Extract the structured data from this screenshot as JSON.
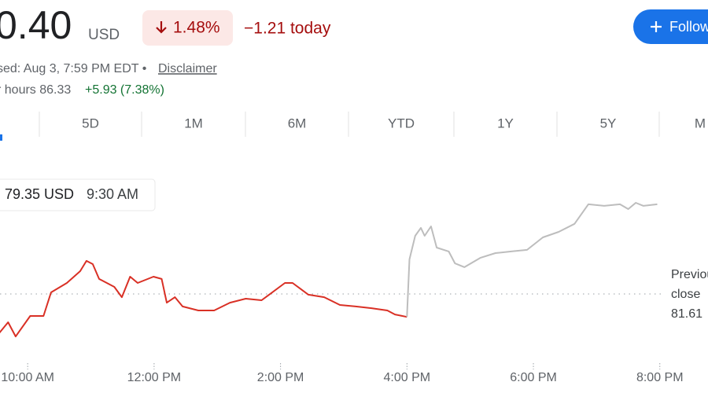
{
  "header": {
    "price": "0.40",
    "currency": "USD",
    "change_percent": "1.48%",
    "change_today": "−1.21 today",
    "follow": "Follow",
    "status": "sed: Aug 3, 7:59 PM EDT •",
    "disclaimer": "Disclaimer",
    "after_hours": "r hours 86.33",
    "after_hours_change": "+5.93 (7.38%)"
  },
  "tabs": [
    "5D",
    "1M",
    "6M",
    "YTD",
    "1Y",
    "5Y",
    "M"
  ],
  "chart_data": {
    "type": "line",
    "xlim": [
      9.5,
      20.7
    ],
    "xticks": [
      {
        "value": 10,
        "label": "10:00 AM"
      },
      {
        "value": 12,
        "label": "12:00 PM"
      },
      {
        "value": 14,
        "label": "2:00 PM"
      },
      {
        "value": 16,
        "label": "4:00 PM"
      },
      {
        "value": 18,
        "label": "6:00 PM"
      },
      {
        "value": 20,
        "label": "8:00 PM"
      }
    ],
    "ylim": [
      78.05,
      88.81
    ],
    "series": [
      {
        "color": "#d93025",
        "x": [
          9.5,
          9.69,
          9.81,
          10.04,
          10.25,
          10.37,
          10.62,
          10.83,
          10.93,
          11.03,
          11.13,
          11.37,
          11.49,
          11.62,
          11.74,
          11.99,
          12.12,
          12.2,
          12.33,
          12.45,
          12.7,
          12.95,
          13.2,
          13.45,
          13.7,
          13.82,
          14.07,
          14.19,
          14.44,
          14.69,
          14.94,
          15.19,
          15.44,
          15.69,
          15.81,
          16.0
        ],
        "values": [
          79.35,
          80.12,
          79.37,
          80.45,
          80.45,
          81.69,
          82.19,
          82.81,
          83.35,
          83.18,
          82.4,
          81.98,
          81.44,
          82.52,
          82.19,
          82.52,
          82.4,
          81.15,
          81.44,
          80.95,
          80.74,
          80.74,
          81.15,
          81.36,
          81.28,
          81.57,
          82.19,
          82.19,
          81.57,
          81.44,
          81.03,
          80.95,
          80.86,
          80.74,
          80.53,
          80.4
        ]
      },
      {
        "color": "#bdbdbd",
        "x": [
          16.0,
          16.04,
          16.13,
          16.22,
          16.28,
          16.38,
          16.47,
          16.66,
          16.76,
          16.91,
          17.16,
          17.4,
          17.65,
          17.9,
          18.15,
          18.4,
          18.65,
          18.87,
          19.12,
          19.37,
          19.5,
          19.62,
          19.74,
          19.96
        ],
        "values": [
          80.4,
          83.43,
          84.67,
          85.09,
          84.67,
          85.17,
          84.05,
          83.85,
          83.22,
          83.02,
          83.51,
          83.76,
          83.85,
          83.93,
          84.59,
          84.88,
          85.3,
          86.33,
          86.25,
          86.33,
          86.08,
          86.41,
          86.25,
          86.33
        ]
      }
    ],
    "previous_close": {
      "label": [
        "Previous",
        "close"
      ],
      "value": 81.61
    },
    "tooltip": {
      "value_label": "79.35 USD",
      "time": "9:30 AM"
    }
  }
}
